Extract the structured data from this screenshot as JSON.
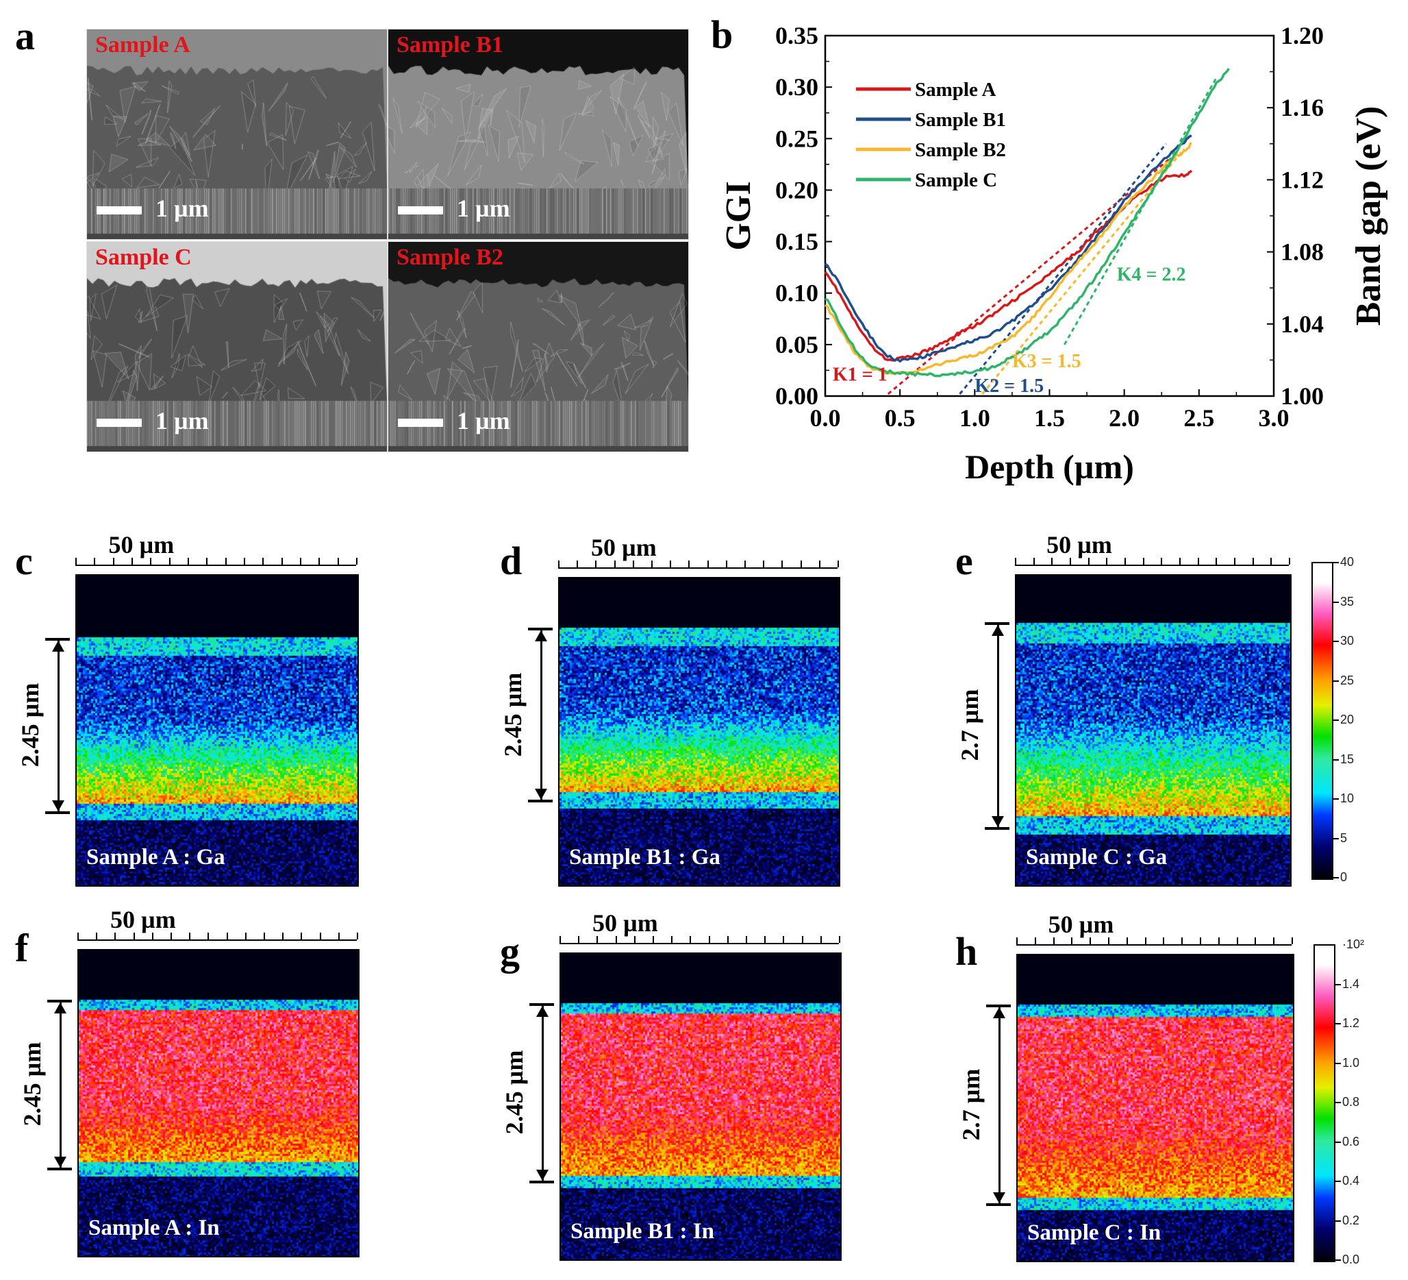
{
  "figure": {
    "panel_labels": [
      "a",
      "b",
      "c",
      "d",
      "e",
      "f",
      "g",
      "h"
    ],
    "panel_a": {
      "images": [
        {
          "label": "Sample A",
          "scale": "1 µm",
          "tone": "#5a5a5a",
          "top_tone": "#8a8a8a"
        },
        {
          "label": "Sample B1",
          "scale": "1 µm",
          "tone": "#8c8c8c",
          "top_tone": "#111111"
        },
        {
          "label": "Sample C",
          "scale": "1 µm",
          "tone": "#4f4f4f",
          "top_tone": "#cfcfcf"
        },
        {
          "label": "Sample B2",
          "scale": "1 µm",
          "tone": "#5e5e5e",
          "top_tone": "#161616"
        }
      ]
    },
    "maps": [
      {
        "id": "c",
        "label": "Sample A : Ga",
        "width_label": "50 µm",
        "thickness_label": "2.45 µm",
        "element": "Ga"
      },
      {
        "id": "d",
        "label": "Sample B1 : Ga",
        "width_label": "50 µm",
        "thickness_label": "2.45 µm",
        "element": "Ga"
      },
      {
        "id": "e",
        "label": "Sample C : Ga",
        "width_label": "50 µm",
        "thickness_label": "2.7 µm",
        "element": "Ga"
      },
      {
        "id": "f",
        "label": "Sample A : In",
        "width_label": "50 µm",
        "thickness_label": "2.45 µm",
        "element": "In"
      },
      {
        "id": "g",
        "label": "Sample B1 : In",
        "width_label": "50 µm",
        "thickness_label": "2.45 µm",
        "element": "In"
      },
      {
        "id": "h",
        "label": "Sample C : In",
        "width_label": "50 µm",
        "thickness_label": "2.7 µm",
        "element": "In"
      }
    ],
    "colorbar_ga": {
      "ticks": [
        "0",
        "5",
        "10",
        "15",
        "20",
        "25",
        "30",
        "35",
        "40"
      ],
      "min": 0,
      "max": 40
    },
    "colorbar_in": {
      "ticks": [
        "0.0",
        "0.2",
        "0.4",
        "0.6",
        "0.8",
        "1.0",
        "1.2",
        "1.4"
      ],
      "multiplier": "·10²",
      "min": 0,
      "max": 1.6
    }
  },
  "chart_data": {
    "type": "line",
    "title": "",
    "xlabel": "Depth (µm)",
    "ylabel": "GGI",
    "y2label": "Band gap (eV)",
    "xlim": [
      0,
      3.0
    ],
    "ylim": [
      0,
      0.35
    ],
    "y2lim": [
      1.0,
      1.2
    ],
    "xticks": [
      "0.0",
      "0.5",
      "1.0",
      "1.5",
      "2.0",
      "2.5",
      "3.0"
    ],
    "yticks": [
      "0.00",
      "0.05",
      "0.10",
      "0.15",
      "0.20",
      "0.25",
      "0.30",
      "0.35"
    ],
    "y2ticks": [
      "1.00",
      "1.04",
      "1.08",
      "1.12",
      "1.16",
      "1.20"
    ],
    "legend_position": "top-left",
    "series": [
      {
        "name": "Sample A",
        "color": "#d7191c",
        "x": [
          0.0,
          0.1,
          0.2,
          0.3,
          0.4,
          0.5,
          0.6,
          0.7,
          0.8,
          0.9,
          1.0,
          1.1,
          1.2,
          1.3,
          1.4,
          1.5,
          1.6,
          1.7,
          1.8,
          1.9,
          2.0,
          2.1,
          2.2,
          2.3,
          2.4,
          2.45
        ],
        "y": [
          0.122,
          0.098,
          0.072,
          0.05,
          0.036,
          0.036,
          0.04,
          0.045,
          0.053,
          0.062,
          0.068,
          0.077,
          0.087,
          0.097,
          0.107,
          0.118,
          0.13,
          0.142,
          0.158,
          0.17,
          0.184,
          0.196,
          0.206,
          0.214,
          0.214,
          0.219
        ]
      },
      {
        "name": "Sample B1",
        "color": "#1f4e8c",
        "x": [
          0.0,
          0.1,
          0.2,
          0.3,
          0.4,
          0.5,
          0.6,
          0.7,
          0.8,
          0.9,
          1.0,
          1.1,
          1.2,
          1.3,
          1.4,
          1.5,
          1.6,
          1.7,
          1.8,
          1.9,
          2.0,
          2.1,
          2.2,
          2.3,
          2.4,
          2.45
        ],
        "y": [
          0.13,
          0.108,
          0.082,
          0.058,
          0.04,
          0.034,
          0.036,
          0.04,
          0.045,
          0.05,
          0.054,
          0.059,
          0.068,
          0.078,
          0.09,
          0.103,
          0.118,
          0.135,
          0.152,
          0.17,
          0.19,
          0.205,
          0.22,
          0.234,
          0.247,
          0.253
        ]
      },
      {
        "name": "Sample B2",
        "color": "#f5b82e",
        "x": [
          0.0,
          0.1,
          0.2,
          0.3,
          0.4,
          0.5,
          0.6,
          0.7,
          0.8,
          0.9,
          1.0,
          1.1,
          1.2,
          1.3,
          1.4,
          1.5,
          1.6,
          1.7,
          1.8,
          1.9,
          2.0,
          2.1,
          2.2,
          2.3,
          2.4,
          2.45
        ],
        "y": [
          0.09,
          0.065,
          0.042,
          0.028,
          0.023,
          0.022,
          0.024,
          0.028,
          0.032,
          0.037,
          0.04,
          0.046,
          0.053,
          0.063,
          0.078,
          0.095,
          0.115,
          0.132,
          0.148,
          0.165,
          0.185,
          0.198,
          0.213,
          0.228,
          0.238,
          0.245
        ]
      },
      {
        "name": "Sample C",
        "color": "#2fb56a",
        "x": [
          0.0,
          0.1,
          0.2,
          0.3,
          0.4,
          0.5,
          0.6,
          0.7,
          0.8,
          0.9,
          1.0,
          1.1,
          1.2,
          1.3,
          1.4,
          1.5,
          1.6,
          1.7,
          1.8,
          1.9,
          2.0,
          2.1,
          2.2,
          2.3,
          2.4,
          2.5,
          2.6,
          2.7
        ],
        "y": [
          0.096,
          0.07,
          0.045,
          0.03,
          0.024,
          0.022,
          0.021,
          0.021,
          0.021,
          0.022,
          0.024,
          0.027,
          0.034,
          0.042,
          0.052,
          0.063,
          0.078,
          0.095,
          0.114,
          0.135,
          0.157,
          0.18,
          0.202,
          0.225,
          0.25,
          0.275,
          0.3,
          0.318
        ]
      }
    ],
    "fit_lines": [
      {
        "label": "K1 = 1",
        "color": "#d7191c",
        "x": [
          0.42,
          2.3
        ],
        "y": [
          0.002,
          0.23
        ]
      },
      {
        "label": "K2 = 1.5",
        "color": "#1f4e8c",
        "x": [
          0.9,
          2.28
        ],
        "y": [
          0.002,
          0.245
        ]
      },
      {
        "label": "K3 = 1.5",
        "color": "#f5b82e",
        "x": [
          1.05,
          2.4
        ],
        "y": [
          0.002,
          0.24
        ]
      },
      {
        "label": "K4 = 2.2",
        "color": "#2fb56a",
        "x": [
          1.6,
          2.62
        ],
        "y": [
          0.05,
          0.31
        ]
      }
    ],
    "annotations": [
      {
        "text": "K1 = 1",
        "color": "#d7191c",
        "x": 0.05,
        "y": 0.015
      },
      {
        "text": "K2 = 1.5",
        "color": "#1f4e8c",
        "x": 1.0,
        "y": 0.004
      },
      {
        "text": "K3 = 1.5",
        "color": "#f5b82e",
        "x": 1.25,
        "y": 0.028
      },
      {
        "text": "K4 = 2.2",
        "color": "#2fb56a",
        "x": 1.95,
        "y": 0.112
      }
    ]
  }
}
